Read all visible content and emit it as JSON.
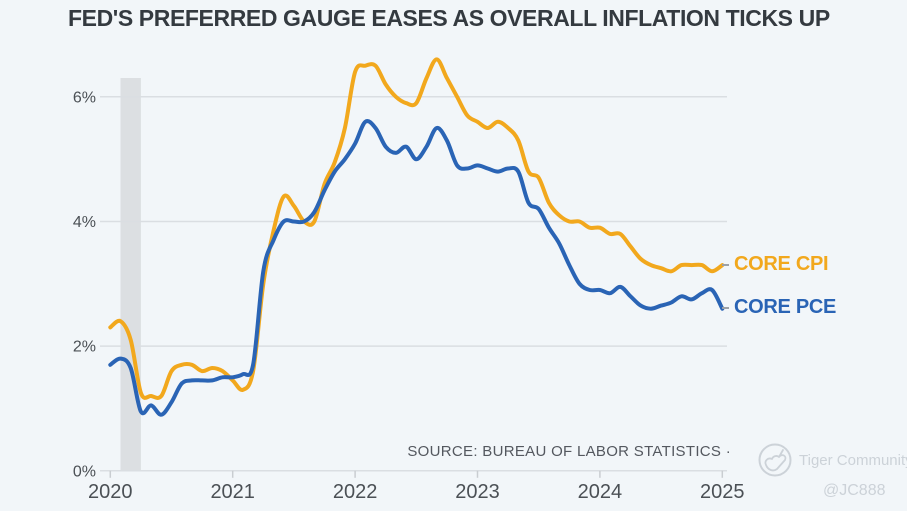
{
  "title": "FED'S PREFERRED GAUGE EASES AS OVERALL INFLATION TICKS UP",
  "source_note": "SOURCE: BUREAU OF LABOR STATISTICS ·",
  "watermark": {
    "community": "Tiger Community",
    "handle": "@JC888",
    "logo_icon": "tiger-logo-icon"
  },
  "colors": {
    "background": "#f2f6f9",
    "grid": "#dadee2",
    "tick": "#c9cdd1",
    "recession_band": "#dcdfe2",
    "title_text": "#343a40",
    "axis_text": "#4b5055",
    "source_text": "#54585f",
    "watermark_text": "#ccd2d8",
    "core_cpi": "#f2a81d",
    "core_pce": "#2a64b5"
  },
  "chart_data": {
    "type": "line",
    "title": "FED'S PREFERRED GAUGE EASES AS OVERALL INFLATION TICKS UP",
    "x_unit": "month",
    "x_start": "2020-01",
    "x_end": "2025-01",
    "x_tick_labels": [
      "2020",
      "2021",
      "2022",
      "2023",
      "2024",
      "2025"
    ],
    "y_ticks": [
      0,
      2,
      4,
      6
    ],
    "y_tick_labels": [
      "0%",
      "2%",
      "4%",
      "6%"
    ],
    "ylim": [
      0,
      6.75
    ],
    "grid": "horizontal",
    "legend_position": "end-of-line",
    "recession_band": {
      "from_index": 1,
      "to_index": 3,
      "note": "Feb-Apr 2020 recession shading"
    },
    "series": [
      {
        "name": "CORE CPI",
        "color_key": "core_cpi",
        "values": [
          2.3,
          2.4,
          2.1,
          1.25,
          1.2,
          1.2,
          1.6,
          1.7,
          1.7,
          1.6,
          1.65,
          1.6,
          1.45,
          1.3,
          1.6,
          3.0,
          3.85,
          4.4,
          4.25,
          4.0,
          4.0,
          4.6,
          4.95,
          5.5,
          6.4,
          6.5,
          6.5,
          6.2,
          6.0,
          5.9,
          5.9,
          6.3,
          6.6,
          6.3,
          6.0,
          5.7,
          5.6,
          5.5,
          5.6,
          5.5,
          5.3,
          4.8,
          4.7,
          4.3,
          4.1,
          4.0,
          4.0,
          3.9,
          3.9,
          3.8,
          3.8,
          3.6,
          3.4,
          3.3,
          3.25,
          3.2,
          3.3,
          3.3,
          3.3,
          3.2,
          3.3
        ]
      },
      {
        "name": "CORE PCE",
        "color_key": "core_pce",
        "values": [
          1.7,
          1.8,
          1.65,
          0.95,
          1.05,
          0.9,
          1.1,
          1.4,
          1.45,
          1.45,
          1.45,
          1.5,
          1.5,
          1.55,
          1.7,
          3.2,
          3.7,
          4.0,
          4.0,
          4.0,
          4.15,
          4.5,
          4.8,
          5.0,
          5.25,
          5.6,
          5.5,
          5.2,
          5.1,
          5.2,
          5.0,
          5.2,
          5.5,
          5.3,
          4.9,
          4.85,
          4.9,
          4.85,
          4.8,
          4.85,
          4.8,
          4.3,
          4.2,
          3.9,
          3.65,
          3.3,
          3.0,
          2.9,
          2.9,
          2.85,
          2.95,
          2.8,
          2.65,
          2.6,
          2.65,
          2.7,
          2.8,
          2.75,
          2.85,
          2.9,
          2.6
        ]
      }
    ]
  }
}
